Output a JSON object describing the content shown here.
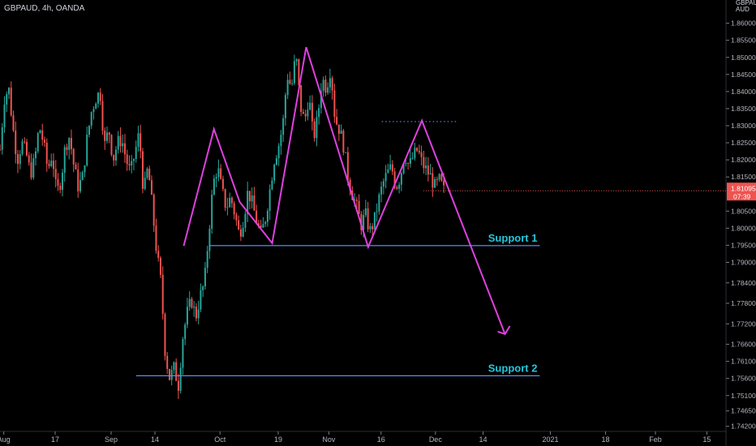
{
  "header": {
    "symbol_line": "GBPAUD, 4h, OANDA"
  },
  "axis_currency": {
    "top": "GBPAUD",
    "bottom": "AUD"
  },
  "chart_data": {
    "type": "candlestick",
    "symbol": "GBPAUD",
    "timeframe": "4h",
    "source": "OANDA",
    "grid": false,
    "ylim": [
      1.7405,
      1.8668
    ],
    "y_ticks": [
      "1.86000",
      "1.85500",
      "1.85000",
      "1.84500",
      "1.84000",
      "1.83500",
      "1.83000",
      "1.82500",
      "1.82000",
      "1.81500",
      "1.80500",
      "1.80000",
      "1.79500",
      "1.79000",
      "1.78400",
      "1.77800",
      "1.77200",
      "1.76600",
      "1.76100",
      "1.75600",
      "1.75100",
      "1.74650",
      "1.74200"
    ],
    "x_ticks": [
      "Aug",
      "17",
      "Sep",
      "14",
      "Oct",
      "19",
      "Nov",
      "16",
      "Dec",
      "14",
      "2021",
      "18",
      "Feb",
      "15"
    ],
    "last_price": "1.81095",
    "countdown": "07:39",
    "price_path_y": [
      1.823,
      1.838,
      1.841,
      1.829,
      1.82,
      1.825,
      1.822,
      1.816,
      1.82,
      1.83,
      1.825,
      1.817,
      1.822,
      1.81,
      1.814,
      1.824,
      1.827,
      1.818,
      1.812,
      1.815,
      1.826,
      1.834,
      1.838,
      1.84,
      1.824,
      1.829,
      1.82,
      1.825,
      1.826,
      1.82,
      1.816,
      1.822,
      1.828,
      1.81,
      1.818,
      1.806,
      1.793,
      1.784,
      1.763,
      1.756,
      1.759,
      1.754,
      1.768,
      1.775,
      1.779,
      1.774,
      1.78,
      1.784,
      1.799,
      1.813,
      1.818,
      1.811,
      1.806,
      1.809,
      1.804,
      1.798,
      1.803,
      1.811,
      1.807,
      1.802,
      1.798,
      1.803,
      1.811,
      1.82,
      1.824,
      1.83,
      1.845,
      1.841,
      1.851,
      1.836,
      1.831,
      1.839,
      1.826,
      1.832,
      1.844,
      1.841,
      1.847,
      1.832,
      1.829,
      1.824,
      1.815,
      1.81,
      1.806,
      1.801,
      1.804,
      1.799,
      1.802,
      1.808,
      1.813,
      1.816,
      1.818,
      1.812,
      1.815,
      1.822,
      1.818,
      1.821,
      1.823,
      1.819,
      1.817,
      1.815,
      1.812,
      1.814,
      1.811
    ],
    "drawings": {
      "zigzag_color": "#e040e0",
      "support_color": "#5b8def",
      "label_color": "#26c6da",
      "zigzag": [
        {
          "price": 1.7948,
          "bar": 0.243
        },
        {
          "price": 1.829,
          "bar": 0.283
        },
        {
          "price": 1.8077,
          "bar": 0.317
        },
        {
          "price": 1.7956,
          "bar": 0.36
        },
        {
          "price": 1.853,
          "bar": 0.405
        },
        {
          "price": 1.7945,
          "bar": 0.487
        },
        {
          "price": 1.8315,
          "bar": 0.558
        },
        {
          "price": 1.769,
          "bar": 0.668
        }
      ],
      "dotted_resistance": {
        "price": 1.8312,
        "from": 0.505,
        "to": 0.605
      },
      "support_1": {
        "price": 1.7949,
        "from": 0.277,
        "to": 0.714,
        "label": "Support 1"
      },
      "support_2": {
        "price": 1.7568,
        "from": 0.18,
        "to": 0.714,
        "label": "Support 2"
      }
    }
  }
}
